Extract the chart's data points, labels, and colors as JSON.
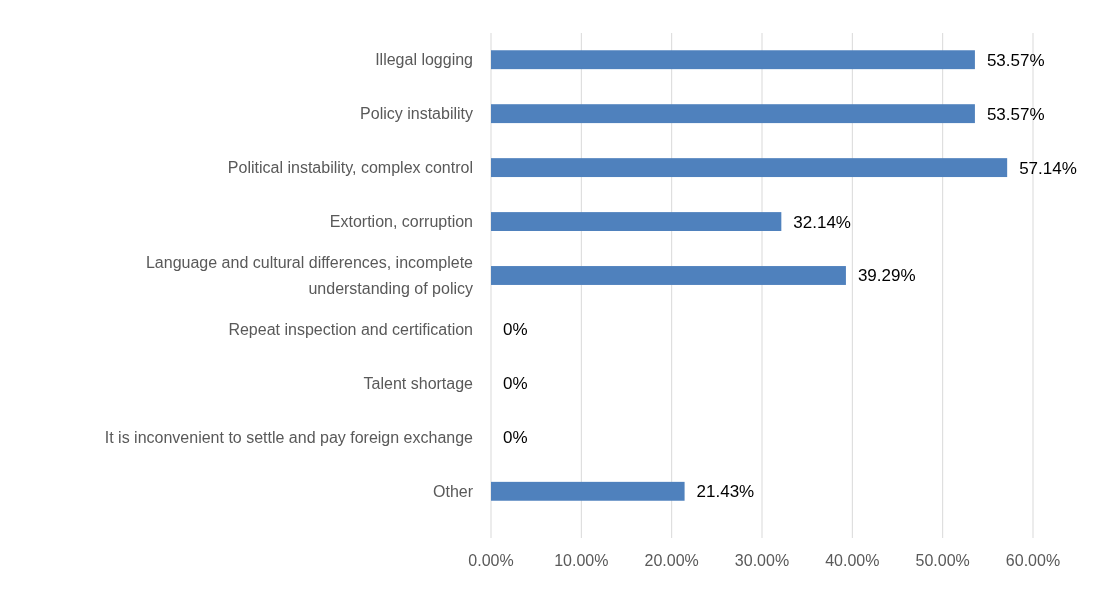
{
  "chart_data": {
    "type": "bar",
    "orientation": "horizontal",
    "categories": [
      "Illegal logging",
      "Policy instability",
      "Political instability, complex control",
      "Extortion, corruption",
      "Language and cultural differences, incomplete understanding of policy",
      "Repeat inspection and certification",
      "Talent shortage",
      "It is inconvenient to settle and pay foreign exchange",
      "Other"
    ],
    "values": [
      53.57,
      53.57,
      57.14,
      32.14,
      39.29,
      0,
      0,
      0,
      21.43
    ],
    "value_labels": [
      "53.57%",
      "53.57%",
      "57.14%",
      "32.14%",
      "39.29%",
      "0%",
      "0%",
      "0%",
      "21.43%"
    ],
    "color": "#4f81bd",
    "xlim": [
      0,
      60
    ],
    "xticks": [
      {
        "value": 0,
        "label": "0.00%"
      },
      {
        "value": 10,
        "label": "10.00%"
      },
      {
        "value": 20,
        "label": "20.00%"
      },
      {
        "value": 30,
        "label": "30.00%"
      },
      {
        "value": 40,
        "label": "40.00%"
      },
      {
        "value": 50,
        "label": "50.00%"
      },
      {
        "value": 60,
        "label": "60.00%"
      }
    ],
    "grid": "x"
  }
}
